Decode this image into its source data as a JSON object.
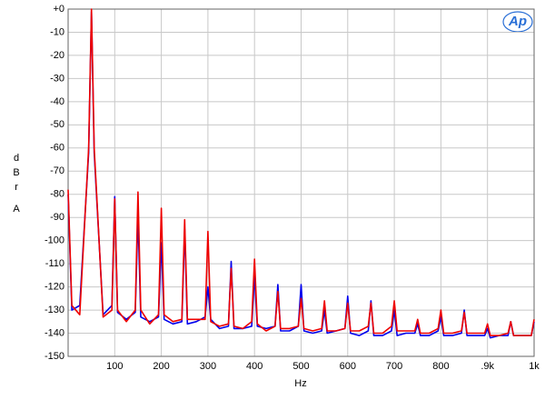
{
  "chart_data": {
    "type": "line",
    "logo": "Ap",
    "x_label": "Hz",
    "y_label": "dBr",
    "y_label_2": "A",
    "xlim": [
      0,
      1000
    ],
    "ylim": [
      -150,
      0
    ],
    "grid": true,
    "xticks": [
      100,
      200,
      300,
      400,
      500,
      600,
      700,
      800,
      {
        "value": 900,
        "label": ".9k"
      },
      {
        "value": 1000,
        "label": "1k"
      }
    ],
    "yticks": [
      {
        "value": 0,
        "label": "+0"
      },
      -10,
      -20,
      -30,
      -40,
      -50,
      -60,
      -70,
      -80,
      -90,
      -100,
      -110,
      -120,
      -130,
      -140,
      -150
    ],
    "x": [
      0,
      8,
      25,
      44,
      50,
      56,
      75,
      94,
      100,
      106,
      125,
      144,
      150,
      156,
      175,
      194,
      200,
      206,
      225,
      244,
      250,
      256,
      275,
      294,
      300,
      306,
      325,
      344,
      350,
      356,
      375,
      394,
      400,
      406,
      425,
      444,
      450,
      456,
      475,
      494,
      500,
      506,
      525,
      544,
      550,
      556,
      575,
      594,
      600,
      606,
      625,
      644,
      650,
      656,
      675,
      694,
      700,
      706,
      725,
      744,
      750,
      756,
      775,
      794,
      800,
      806,
      825,
      844,
      850,
      856,
      875,
      894,
      900,
      906,
      925,
      944,
      950,
      956,
      975,
      994,
      1000
    ],
    "series": [
      {
        "color": "#0000ee",
        "values": [
          -80,
          -130,
          -128,
          -62,
          -1,
          -62,
          -132,
          -128,
          -81,
          -131,
          -134,
          -131,
          -89,
          -133,
          -135,
          -133,
          -101,
          -134,
          -136,
          -135,
          -95,
          -136,
          -135,
          -133,
          -120,
          -134,
          -138,
          -137,
          -109,
          -138,
          -138,
          -137,
          -115,
          -137,
          -138,
          -137,
          -119,
          -139,
          -139,
          -137,
          -119,
          -139,
          -140,
          -139,
          -130,
          -140,
          -139,
          -138,
          -124,
          -140,
          -141,
          -139,
          -126,
          -141,
          -141,
          -139,
          -130,
          -141,
          -140,
          -140,
          -136,
          -141,
          -141,
          -139,
          -133,
          -141,
          -141,
          -140,
          -130,
          -141,
          -141,
          -141,
          -138,
          -142,
          -141,
          -141,
          -135,
          -141,
          -141,
          -141,
          -135
        ]
      },
      {
        "color": "#ee0000",
        "values": [
          -78,
          -128,
          -132,
          -60,
          0,
          -60,
          -133,
          -130,
          -82,
          -130,
          -135,
          -130,
          -79,
          -130,
          -136,
          -132,
          -86,
          -132,
          -135,
          -134,
          -91,
          -134,
          -134,
          -134,
          -96,
          -135,
          -137,
          -136,
          -112,
          -137,
          -138,
          -135,
          -108,
          -136,
          -139,
          -137,
          -122,
          -138,
          -138,
          -137,
          -125,
          -138,
          -139,
          -138,
          -126,
          -139,
          -139,
          -138,
          -127,
          -139,
          -139,
          -137,
          -127,
          -140,
          -140,
          -137,
          -126,
          -139,
          -139,
          -139,
          -134,
          -140,
          -140,
          -138,
          -130,
          -140,
          -140,
          -139,
          -131,
          -140,
          -140,
          -140,
          -136,
          -141,
          -141,
          -140,
          -135,
          -141,
          -141,
          -141,
          -134
        ]
      }
    ]
  }
}
